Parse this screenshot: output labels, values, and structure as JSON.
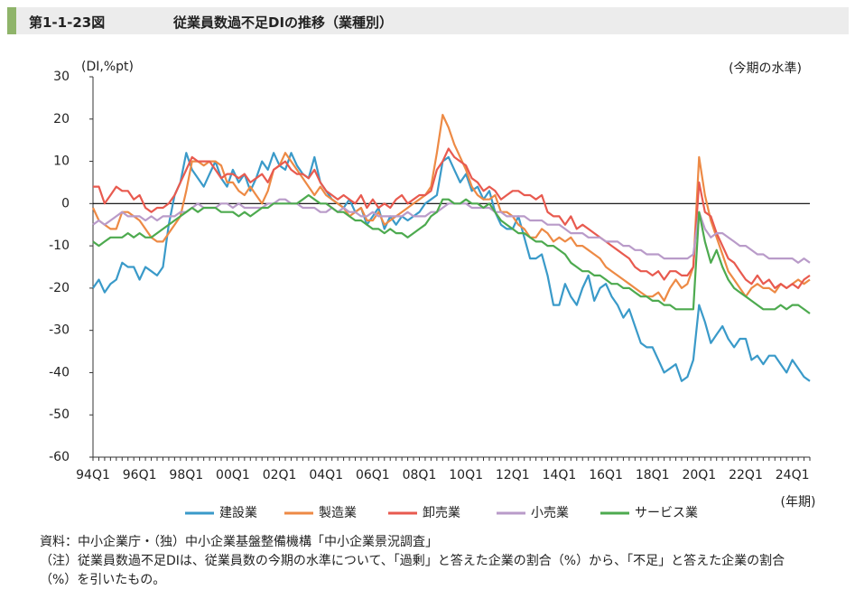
{
  "chart_data": {
    "type": "line",
    "figure_label": "第1-1-23図",
    "title": "従業員数過不足DIの推移（業種別）",
    "y_label": "(DI,%pt)",
    "annotation": "(今期の水準)",
    "x_label": "(年期)",
    "categories": [
      "94Q1",
      null,
      null,
      null,
      null,
      null,
      null,
      null,
      "96Q1",
      null,
      null,
      null,
      null,
      null,
      null,
      null,
      "98Q1",
      null,
      null,
      null,
      null,
      null,
      null,
      null,
      "00Q1",
      null,
      null,
      null,
      null,
      null,
      null,
      null,
      "02Q1",
      null,
      null,
      null,
      null,
      null,
      null,
      null,
      "04Q1",
      null,
      null,
      null,
      null,
      null,
      null,
      null,
      "06Q1",
      null,
      null,
      null,
      null,
      null,
      null,
      null,
      "08Q1",
      null,
      null,
      null,
      null,
      null,
      null,
      null,
      "10Q1",
      null,
      null,
      null,
      null,
      null,
      null,
      null,
      "12Q1",
      null,
      null,
      null,
      null,
      null,
      null,
      null,
      "14Q1",
      null,
      null,
      null,
      null,
      null,
      null,
      null,
      "16Q1",
      null,
      null,
      null,
      null,
      null,
      null,
      null,
      "18Q1",
      null,
      null,
      null,
      null,
      null,
      null,
      null,
      "20Q1",
      null,
      null,
      null,
      null,
      null,
      null,
      null,
      "22Q1",
      null,
      null,
      null,
      null,
      null,
      null,
      null,
      "24Q1",
      null,
      null,
      null
    ],
    "ylim": [
      -60,
      30
    ],
    "yticks": [
      -60,
      -50,
      -40,
      -30,
      -20,
      -10,
      0,
      10,
      20,
      30
    ],
    "series": [
      {
        "name": "建設業",
        "color": "#3a9ac9",
        "values": [
          -20,
          -18,
          -21,
          -19,
          -18,
          -14,
          -15,
          -15,
          -18,
          -15,
          -16,
          -17,
          -15,
          -5,
          2,
          5,
          12,
          8,
          6,
          4,
          7,
          10,
          6,
          4,
          8,
          5,
          7,
          3,
          6,
          10,
          8,
          12,
          9,
          8,
          12,
          9,
          7,
          6,
          11,
          5,
          3,
          1,
          0,
          -1,
          1,
          -2,
          -1,
          -5,
          -3,
          -1,
          -6,
          -3,
          -5,
          -3,
          -4,
          -3,
          -2,
          0,
          1,
          2,
          10,
          11,
          8,
          5,
          7,
          3,
          4,
          1,
          3,
          -2,
          -5,
          -6,
          -6,
          -3,
          -8,
          -13,
          -13,
          -12,
          -17,
          -24,
          -24,
          -19,
          -22,
          -24,
          -20,
          -17,
          -23,
          -20,
          -19,
          -22,
          -24,
          -27,
          -25,
          -29,
          -33,
          -34,
          -34,
          -37,
          -40,
          -39,
          -38,
          -42,
          -41,
          -37,
          -24,
          -28,
          -33,
          -31,
          -29,
          -32,
          -34,
          -32,
          -32,
          -37,
          -36,
          -38,
          -36,
          -36,
          -38,
          -40,
          -37,
          -39,
          -41,
          -42
        ]
      },
      {
        "name": "製造業",
        "color": "#ed8a45",
        "values": [
          -1,
          -4,
          -5,
          -6,
          -6,
          -2,
          -2,
          -3,
          -4,
          -6,
          -8,
          -9,
          -9,
          -7,
          -5,
          -3,
          3,
          10,
          10,
          9,
          10,
          10,
          9,
          5,
          5,
          3,
          2,
          4,
          2,
          0,
          3,
          8,
          9,
          12,
          10,
          8,
          6,
          4,
          2,
          4,
          2,
          1,
          0,
          -1,
          -3,
          -2,
          -1,
          -4,
          -4,
          -2,
          -5,
          -4,
          -3,
          -2,
          -1,
          0,
          1,
          2,
          4,
          12,
          21,
          18,
          14,
          11,
          8,
          4,
          2,
          1,
          1,
          2,
          -2,
          -2,
          -3,
          -5,
          -6,
          -8,
          -8,
          -6,
          -7,
          -9,
          -8,
          -9,
          -8,
          -10,
          -10,
          -11,
          -12,
          -13,
          -15,
          -16,
          -17,
          -18,
          -19,
          -20,
          -21,
          -22,
          -22,
          -21,
          -23,
          -20,
          -18,
          -20,
          -19,
          -15,
          11,
          2,
          -4,
          -8,
          -12,
          -16,
          -18,
          -20,
          -22,
          -20,
          -19,
          -20,
          -20,
          -21,
          -19,
          -20,
          -19,
          -18,
          -19,
          -18
        ]
      },
      {
        "name": "卸売業",
        "color": "#e85a4f",
        "values": [
          4,
          4,
          0,
          2,
          4,
          3,
          3,
          1,
          2,
          -1,
          -2,
          -1,
          -1,
          0,
          2,
          5,
          8,
          11,
          10,
          10,
          10,
          8,
          6,
          7,
          7,
          6,
          7,
          5,
          6,
          7,
          5,
          8,
          9,
          10,
          8,
          7,
          7,
          6,
          8,
          5,
          3,
          2,
          1,
          2,
          1,
          0,
          2,
          -1,
          1,
          -1,
          0,
          -1,
          1,
          2,
          0,
          1,
          2,
          2,
          3,
          8,
          10,
          13,
          11,
          10,
          9,
          6,
          5,
          3,
          4,
          3,
          1,
          2,
          3,
          3,
          2,
          2,
          1,
          2,
          -2,
          -3,
          -3,
          -5,
          -3,
          -6,
          -5,
          -6,
          -7,
          -8,
          -9,
          -10,
          -11,
          -12,
          -13,
          -15,
          -16,
          -16,
          -17,
          -16,
          -18,
          -16,
          -16,
          -17,
          -17,
          -15,
          5,
          -2,
          -3,
          -7,
          -10,
          -13,
          -14,
          -16,
          -18,
          -19,
          -17,
          -19,
          -18,
          -20,
          -19,
          -20,
          -19,
          -20,
          -18,
          -17
        ]
      },
      {
        "name": "小売業",
        "color": "#b99bc9",
        "values": [
          -5,
          -4,
          -5,
          -4,
          -3,
          -2,
          -3,
          -3,
          -3,
          -4,
          -3,
          -4,
          -3,
          -3,
          -3,
          -2,
          -2,
          -1,
          0,
          -1,
          -1,
          -1,
          0,
          0,
          -1,
          0,
          -1,
          -1,
          -1,
          -1,
          0,
          0,
          1,
          1,
          0,
          0,
          -1,
          -1,
          -1,
          -2,
          -2,
          -1,
          -2,
          -1,
          -2,
          -2,
          -3,
          -3,
          -2,
          -3,
          -3,
          -3,
          -3,
          -3,
          -2,
          -3,
          -3,
          -3,
          -2,
          -2,
          -1,
          0,
          0,
          0,
          0,
          -1,
          -1,
          -1,
          -1,
          -2,
          -2,
          -3,
          -3,
          -3,
          -3,
          -4,
          -4,
          -4,
          -5,
          -5,
          -5,
          -6,
          -7,
          -7,
          -7,
          -8,
          -8,
          -8,
          -9,
          -9,
          -9,
          -10,
          -10,
          -11,
          -11,
          -12,
          -12,
          -12,
          -13,
          -13,
          -13,
          -13,
          -13,
          -12,
          -2,
          -6,
          -8,
          -7,
          -7,
          -8,
          -9,
          -10,
          -10,
          -11,
          -12,
          -12,
          -13,
          -13,
          -13,
          -13,
          -13,
          -14,
          -13,
          -14
        ]
      },
      {
        "name": "サービス業",
        "color": "#4daa4f",
        "values": [
          -9,
          -10,
          -9,
          -8,
          -8,
          -8,
          -7,
          -8,
          -7,
          -8,
          -8,
          -7,
          -6,
          -5,
          -4,
          -3,
          -2,
          -1,
          -2,
          -1,
          -1,
          -1,
          -2,
          -2,
          -2,
          -3,
          -2,
          -3,
          -2,
          -1,
          -1,
          0,
          0,
          0,
          0,
          0,
          1,
          2,
          1,
          0,
          0,
          -1,
          -2,
          -2,
          -3,
          -4,
          -4,
          -5,
          -6,
          -6,
          -7,
          -6,
          -7,
          -7,
          -8,
          -7,
          -6,
          -5,
          -3,
          -2,
          1,
          1,
          0,
          0,
          1,
          0,
          0,
          -1,
          0,
          -2,
          -4,
          -5,
          -6,
          -7,
          -7,
          -8,
          -9,
          -9,
          -10,
          -10,
          -11,
          -12,
          -14,
          -15,
          -16,
          -16,
          -17,
          -17,
          -18,
          -19,
          -19,
          -20,
          -20,
          -21,
          -22,
          -22,
          -23,
          -23,
          -24,
          -24,
          -25,
          -25,
          -25,
          -25,
          -2,
          -9,
          -14,
          -11,
          -15,
          -18,
          -20,
          -21,
          -22,
          -23,
          -24,
          -25,
          -25,
          -25,
          -24,
          -25,
          -24,
          -24,
          -25,
          -26
        ]
      }
    ],
    "source": "資料：中小企業庁・（独）中小企業基盤整備機構「中小企業景況調査」",
    "note": "（注）従業員数過不足DIは、従業員数の今期の水準について、「過剰」と答えた企業の割合（%）から、「不足」と答えた企業の割合（%）を引いたもの。"
  }
}
